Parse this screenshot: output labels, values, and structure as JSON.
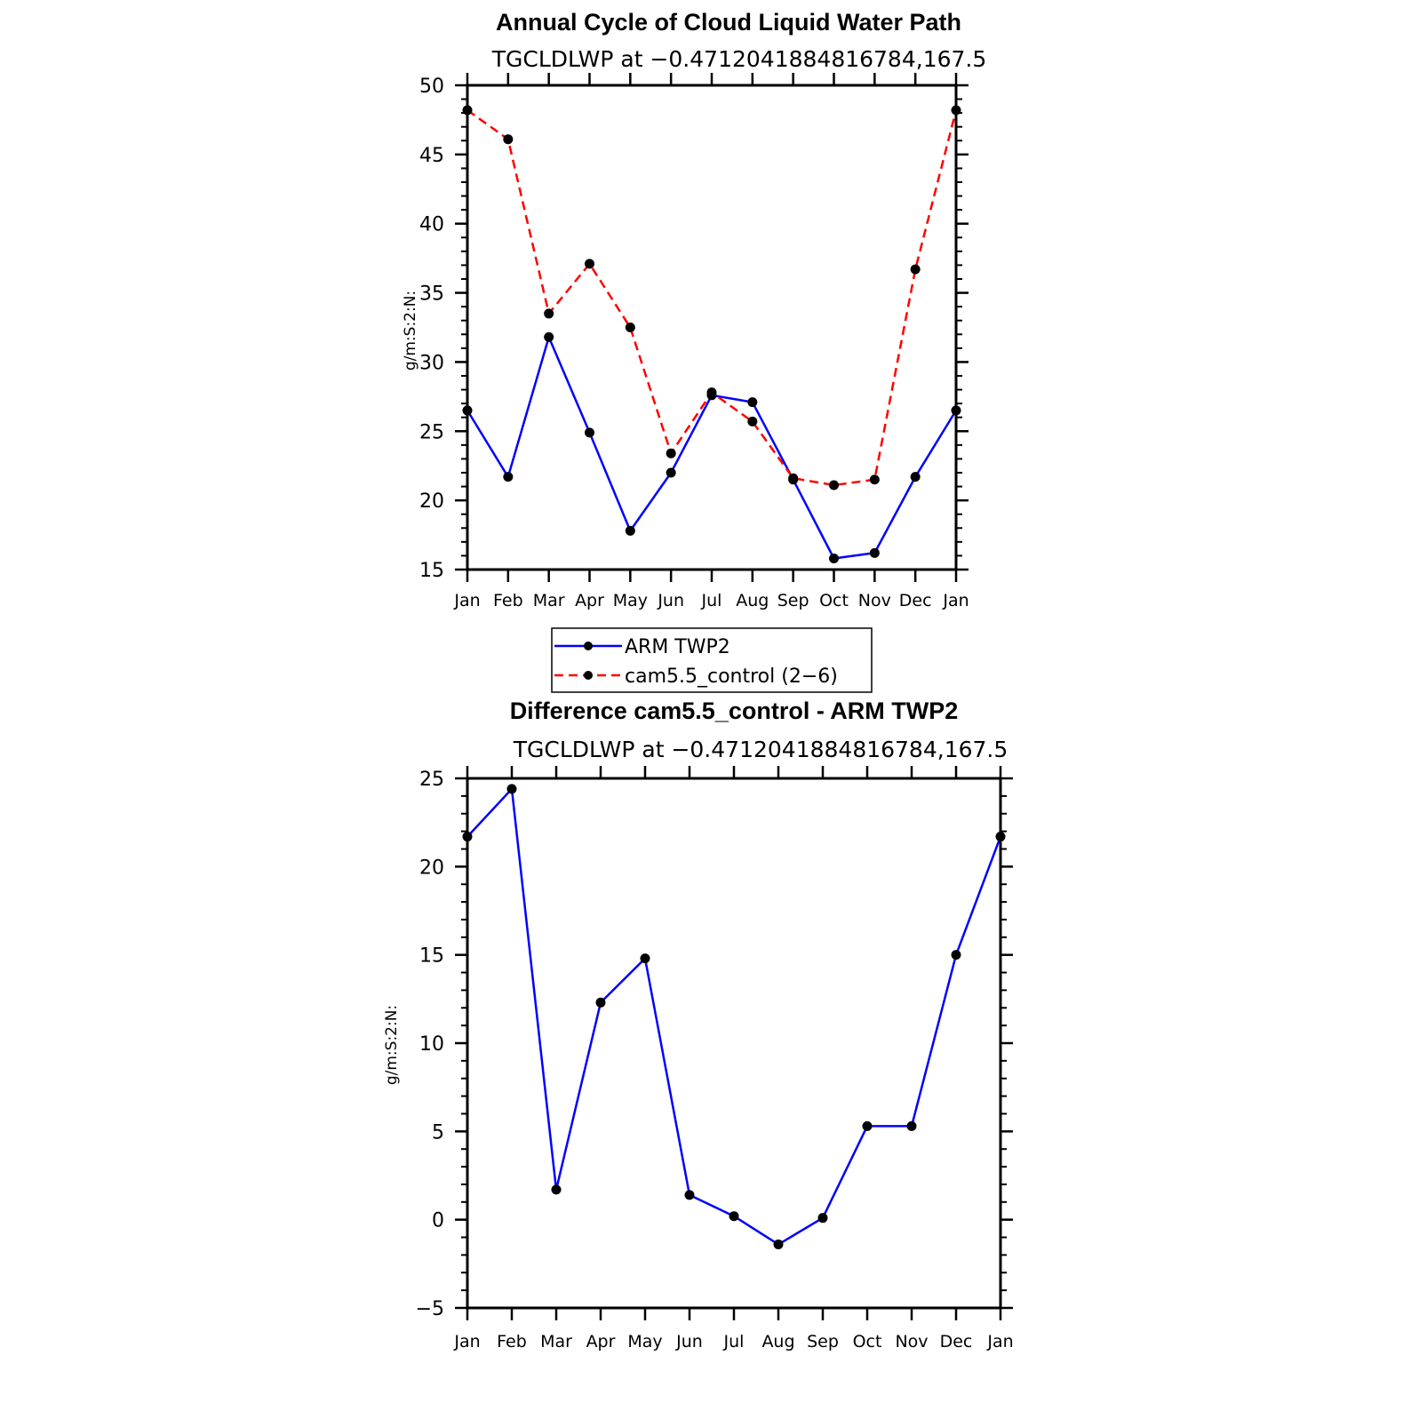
{
  "chart_data": [
    {
      "type": "line",
      "title": "Annual Cycle of Cloud Liquid Water Path",
      "subtitle": "TGCLDLWP at −0.4712041884816784,167.5",
      "ylabel": "g/m:S:2:N:",
      "xlabel": "",
      "ylim": [
        15,
        50
      ],
      "yticks": [
        "15",
        "20",
        "25",
        "30",
        "35",
        "40",
        "45",
        "50"
      ],
      "categories": [
        "Jan",
        "Feb",
        "Mar",
        "Apr",
        "May",
        "Jun",
        "Jul",
        "Aug",
        "Sep",
        "Oct",
        "Nov",
        "Dec",
        "Jan"
      ],
      "series": [
        {
          "name": "ARM TWP2",
          "color": "#0000ff",
          "dash": "solid",
          "values": [
            26.5,
            21.7,
            31.8,
            24.9,
            17.8,
            22.0,
            27.6,
            27.1,
            21.5,
            15.8,
            16.2,
            21.7,
            26.5
          ]
        },
        {
          "name": "cam5.5_control (2−6)",
          "color": "#ff0000",
          "dash": "dashed",
          "values": [
            48.2,
            46.1,
            33.5,
            37.1,
            32.5,
            23.4,
            27.8,
            25.7,
            21.6,
            21.1,
            21.5,
            36.7,
            48.2
          ]
        }
      ],
      "legend": {
        "placement": "bottom"
      },
      "grid": false
    },
    {
      "type": "line",
      "title": "Difference cam5.5_control - ARM TWP2",
      "subtitle": "TGCLDLWP at −0.4712041884816784,167.5",
      "ylabel": "g/m:S:2:N:",
      "xlabel": "",
      "ylim": [
        -5,
        25
      ],
      "yticks": [
        "−5",
        "0",
        "5",
        "10",
        "15",
        "20",
        "25"
      ],
      "categories": [
        "Jan",
        "Feb",
        "Mar",
        "Apr",
        "May",
        "Jun",
        "Jul",
        "Aug",
        "Sep",
        "Oct",
        "Nov",
        "Dec",
        "Jan"
      ],
      "series": [
        {
          "color": "#0000ff",
          "dash": "solid",
          "values": [
            21.7,
            24.4,
            1.7,
            12.3,
            14.8,
            1.4,
            0.2,
            -1.4,
            0.1,
            5.3,
            5.3,
            15.0,
            21.7
          ]
        }
      ],
      "grid": false
    }
  ]
}
